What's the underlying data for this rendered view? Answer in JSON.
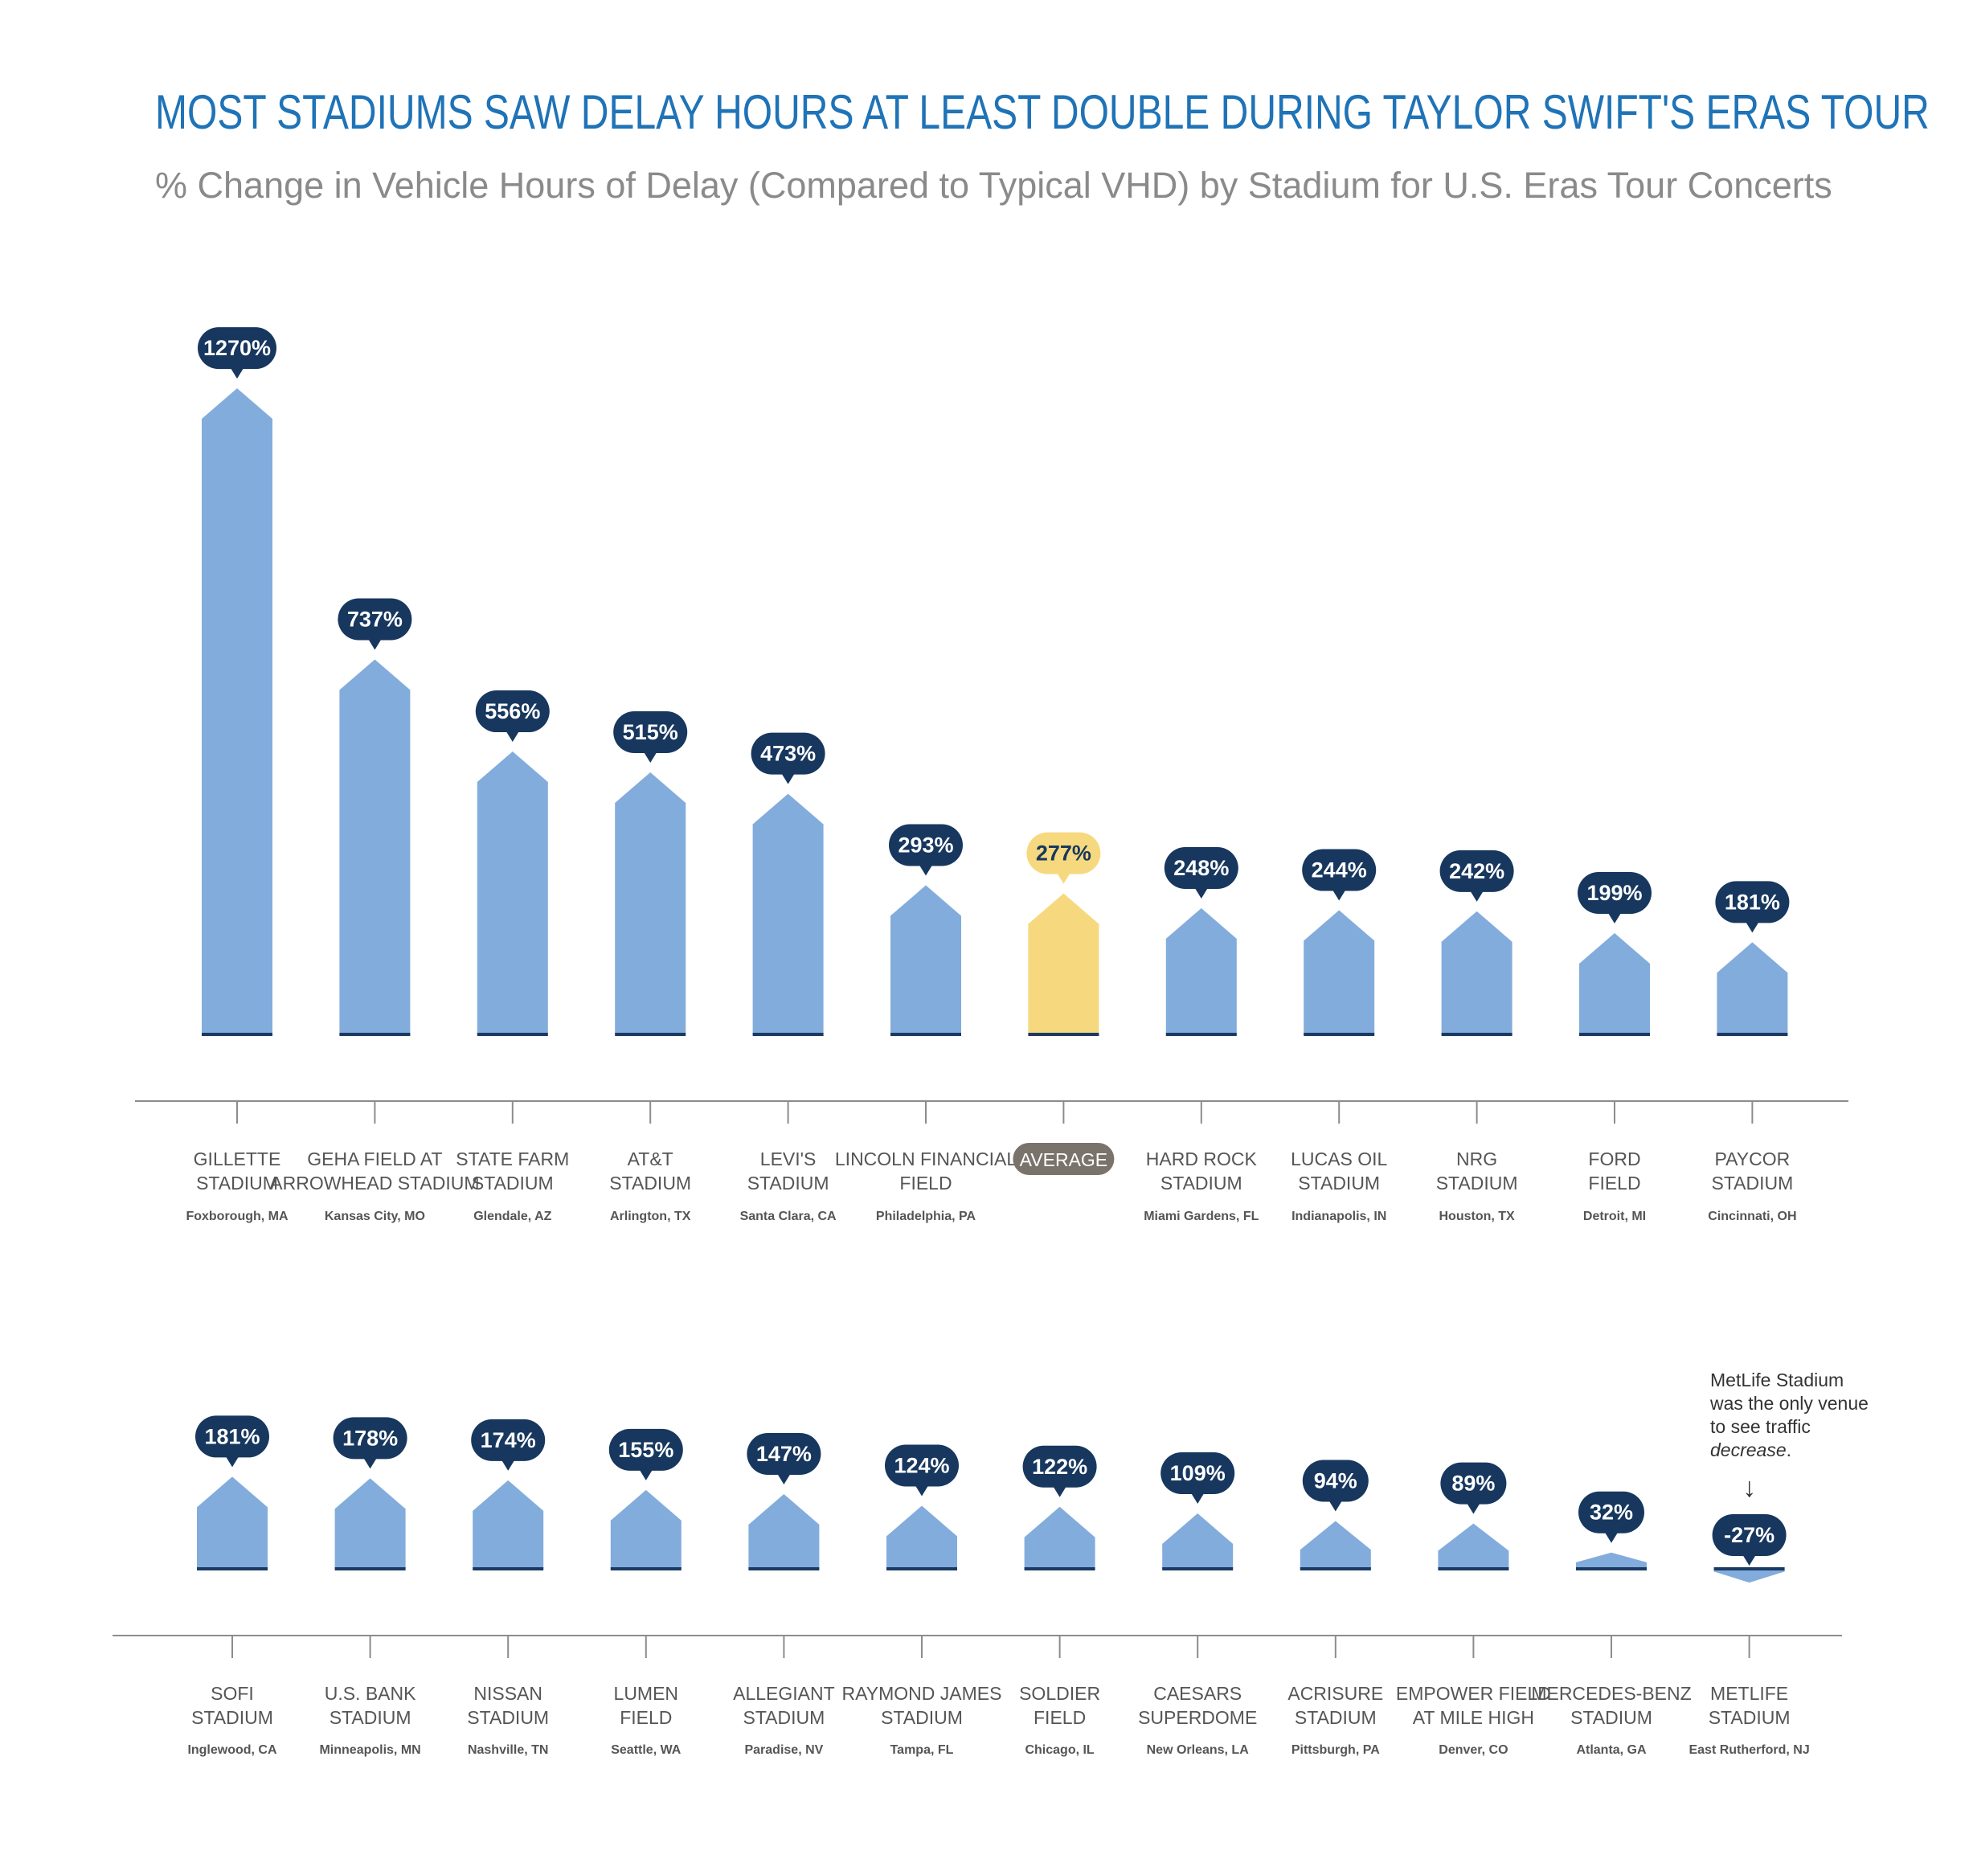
{
  "header": {
    "title": "MOST STADIUMS SAW DELAY HOURS AT LEAST DOUBLE DURING TAYLOR SWIFT'S ERAS TOUR",
    "subtitle": "% Change in Vehicle Hours of Delay (Compared to Typical VHD) by Stadium for U.S. Eras Tour Concerts"
  },
  "note": {
    "text_before": "MetLife Stadium was the only venue to see traffic ",
    "emphasis": "decrease",
    "text_after": ".",
    "arrow": "↓"
  },
  "colors": {
    "bar": "#82acdc",
    "average_bar": "#f6d97f",
    "baseline": "#1a3a63",
    "label_bubble": "#17375e",
    "label_text": "#ffffff",
    "average_label_bubble": "#f6d97f",
    "average_label_text": "#17375e",
    "average_tag": "#7a736c",
    "axis": "#8c8c8c",
    "stadium_name": "#555555",
    "city": "#555555",
    "title": "#1f73b7",
    "subtitle": "#8a8a8a"
  },
  "chart_data": [
    {
      "type": "bar",
      "panel": "top",
      "value_unit": "%",
      "categories": [
        {
          "name": [
            "GILLETTE",
            "STADIUM"
          ],
          "city": "Foxborough, MA",
          "value": 1270,
          "label": "1270%"
        },
        {
          "name": [
            "GEHA FIELD AT",
            "ARROWHEAD STADIUM"
          ],
          "city": "Kansas City, MO",
          "value": 737,
          "label": "737%"
        },
        {
          "name": [
            "STATE FARM",
            "STADIUM"
          ],
          "city": "Glendale, AZ",
          "value": 556,
          "label": "556%"
        },
        {
          "name": [
            "AT&T",
            "STADIUM"
          ],
          "city": "Arlington, TX",
          "value": 515,
          "label": "515%"
        },
        {
          "name": [
            "LEVI'S",
            "STADIUM"
          ],
          "city": "Santa Clara, CA",
          "value": 473,
          "label": "473%"
        },
        {
          "name": [
            "LINCOLN FINANCIAL",
            "FIELD"
          ],
          "city": "Philadelphia, PA",
          "value": 293,
          "label": "293%"
        },
        {
          "name": [
            "AVERAGE"
          ],
          "city": "",
          "value": 277,
          "label": "277%",
          "is_average": true
        },
        {
          "name": [
            "HARD ROCK",
            "STADIUM"
          ],
          "city": "Miami Gardens, FL",
          "value": 248,
          "label": "248%"
        },
        {
          "name": [
            "LUCAS OIL",
            "STADIUM"
          ],
          "city": "Indianapolis, IN",
          "value": 244,
          "label": "244%"
        },
        {
          "name": [
            "NRG",
            "STADIUM"
          ],
          "city": "Houston, TX",
          "value": 242,
          "label": "242%"
        },
        {
          "name": [
            "FORD",
            "FIELD"
          ],
          "city": "Detroit, MI",
          "value": 199,
          "label": "199%"
        },
        {
          "name": [
            "PAYCOR",
            "STADIUM"
          ],
          "city": "Cincinnati, OH",
          "value": 181,
          "label": "181%"
        }
      ]
    },
    {
      "type": "bar",
      "panel": "bottom",
      "value_unit": "%",
      "categories": [
        {
          "name": [
            "SOFI",
            "STADIUM"
          ],
          "city": "Inglewood, CA",
          "value": 181,
          "label": "181%"
        },
        {
          "name": [
            "U.S. BANK",
            "STADIUM"
          ],
          "city": "Minneapolis, MN",
          "value": 178,
          "label": "178%"
        },
        {
          "name": [
            "NISSAN",
            "STADIUM"
          ],
          "city": "Nashville, TN",
          "value": 174,
          "label": "174%"
        },
        {
          "name": [
            "LUMEN",
            "FIELD"
          ],
          "city": "Seattle, WA",
          "value": 155,
          "label": "155%"
        },
        {
          "name": [
            "ALLEGIANT",
            "STADIUM"
          ],
          "city": "Paradise, NV",
          "value": 147,
          "label": "147%"
        },
        {
          "name": [
            "RAYMOND JAMES",
            "STADIUM"
          ],
          "city": "Tampa, FL",
          "value": 124,
          "label": "124%"
        },
        {
          "name": [
            "SOLDIER",
            "FIELD"
          ],
          "city": "Chicago, IL",
          "value": 122,
          "label": "122%"
        },
        {
          "name": [
            "CAESARS",
            "SUPERDOME"
          ],
          "city": "New Orleans, LA",
          "value": 109,
          "label": "109%"
        },
        {
          "name": [
            "ACRISURE",
            "STADIUM"
          ],
          "city": "Pittsburgh, PA",
          "value": 94,
          "label": "94%"
        },
        {
          "name": [
            "EMPOWER FIELD",
            "AT MILE HIGH"
          ],
          "city": "Denver, CO",
          "value": 89,
          "label": "89%"
        },
        {
          "name": [
            "MERCEDES-BENZ",
            "STADIUM"
          ],
          "city": "Atlanta, GA",
          "value": 32,
          "label": "32%"
        },
        {
          "name": [
            "METLIFE",
            "STADIUM"
          ],
          "city": "East Rutherford, NJ",
          "value": -27,
          "label": "-27%"
        }
      ]
    }
  ]
}
